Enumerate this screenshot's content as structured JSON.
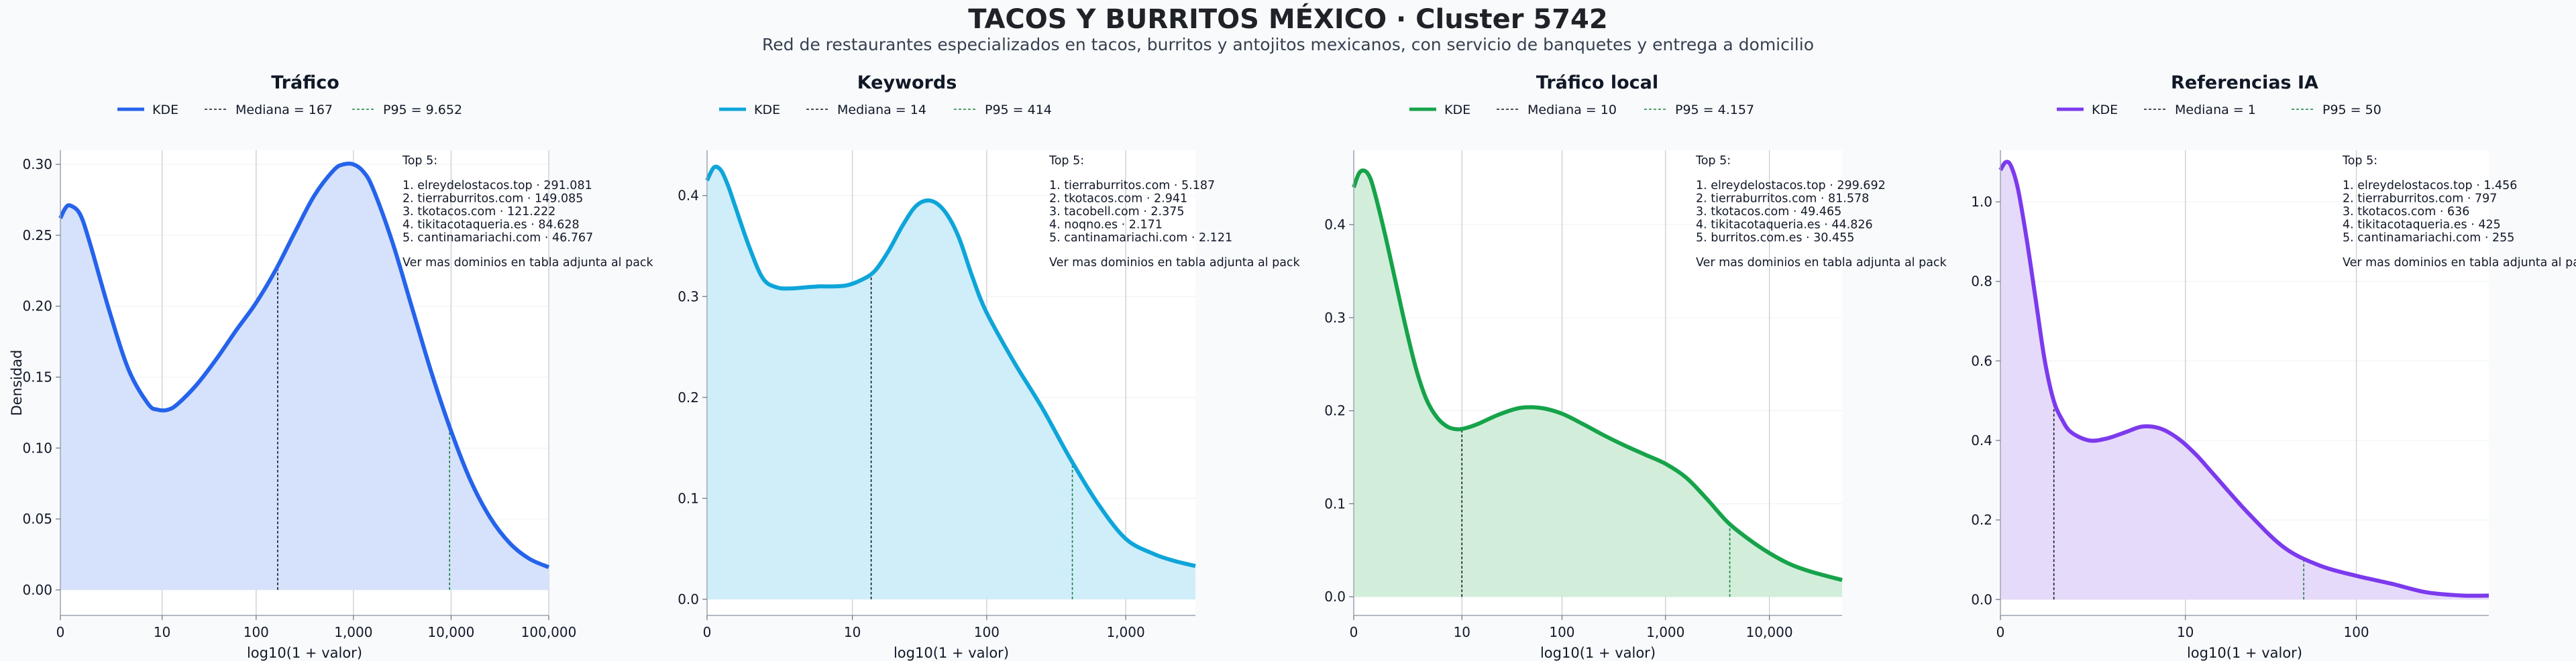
{
  "header": {
    "title": "TACOS Y BURRITOS MÉXICO · Cluster 5742",
    "subtitle": "Red de restaurantes especializados en tacos, burritos y antojitos mexicanos, con servicio de banquetes y entrega a domicilio"
  },
  "chart_data": [
    {
      "type": "area",
      "title": "Tráfico",
      "xlabel": "log10(1 + valor)",
      "ylabel": "Densidad",
      "color": "#2563eb",
      "fill": "#d6e2fb",
      "xlim": [
        0,
        5.0
      ],
      "ylim": [
        -0.018,
        0.31
      ],
      "yticks": [
        0,
        0.05,
        0.1,
        0.15,
        0.2,
        0.25,
        0.3
      ],
      "ytick_labels": [
        "0.00",
        "0.05",
        "0.10",
        "0.15",
        "0.20",
        "0.25",
        "0.30"
      ],
      "xticks": [
        0,
        1.0414,
        2.0043,
        3.0004,
        4.0,
        5.0
      ],
      "xtick_labels": [
        "0",
        "10",
        "100",
        "1,000",
        "10,000",
        "100,000"
      ],
      "grid": true,
      "legend": {
        "placement": "top-center",
        "kde_label": "KDE",
        "median_label": "Mediana = 167",
        "p95_label": "P95 = 9.652"
      },
      "median_x": 2.225,
      "p95_x": 3.985,
      "series": [
        {
          "name": "KDE",
          "x": [
            0,
            0.05,
            0.1,
            0.2,
            0.3,
            0.5,
            0.7,
            0.9,
            1.0,
            1.1,
            1.2,
            1.4,
            1.6,
            1.8,
            2.0,
            2.2,
            2.4,
            2.6,
            2.8,
            2.9,
            3.0,
            3.1,
            3.2,
            3.4,
            3.6,
            3.8,
            4.0,
            4.2,
            4.4,
            4.6,
            4.8,
            5.0
          ],
          "y": [
            0.262,
            0.269,
            0.271,
            0.265,
            0.245,
            0.197,
            0.155,
            0.131,
            0.127,
            0.127,
            0.131,
            0.145,
            0.163,
            0.183,
            0.202,
            0.225,
            0.252,
            0.278,
            0.296,
            0.3,
            0.3,
            0.295,
            0.283,
            0.245,
            0.199,
            0.153,
            0.112,
            0.077,
            0.051,
            0.033,
            0.022,
            0.016
          ]
        }
      ],
      "annotation": {
        "heading": "Top 5:",
        "lines": [
          "1. elreydelostacos.top · 291.081",
          "2. tierraburritos.com · 149.085",
          "3. tkotacos.com · 121.222",
          "4. tikitacotaqueria.es · 84.628",
          "5. cantinamariachi.com · 46.767"
        ],
        "footer": "Ver mas dominios en tabla adjunta al pack"
      }
    },
    {
      "type": "area",
      "title": "Keywords",
      "xlabel": "log10(1 + valor)",
      "ylabel": "",
      "color": "#0ea5d9",
      "fill": "#cfeefa",
      "xlim": [
        0,
        3.5
      ],
      "ylim": [
        -0.016,
        0.445
      ],
      "yticks": [
        0,
        0.1,
        0.2,
        0.3,
        0.4
      ],
      "ytick_labels": [
        "0.0",
        "0.1",
        "0.2",
        "0.3",
        "0.4"
      ],
      "xticks": [
        0,
        1.0414,
        2.0043,
        3.0004
      ],
      "xtick_labels": [
        "0",
        "10",
        "100",
        "1,000"
      ],
      "grid": true,
      "legend": {
        "placement": "top-center",
        "kde_label": "KDE",
        "median_label": "Mediana = 14",
        "p95_label": "P95 = 414"
      },
      "median_x": 1.176,
      "p95_x": 2.618,
      "series": [
        {
          "name": "KDE",
          "x": [
            0,
            0.05,
            0.1,
            0.15,
            0.2,
            0.3,
            0.4,
            0.5,
            0.6,
            0.7,
            0.8,
            0.9,
            1.0,
            1.1,
            1.2,
            1.3,
            1.4,
            1.5,
            1.6,
            1.7,
            1.8,
            1.9,
            2.0,
            2.2,
            2.4,
            2.6,
            2.8,
            3.0,
            3.2,
            3.35,
            3.5
          ],
          "y": [
            0.415,
            0.428,
            0.425,
            0.41,
            0.39,
            0.35,
            0.318,
            0.309,
            0.308,
            0.309,
            0.31,
            0.31,
            0.311,
            0.316,
            0.325,
            0.345,
            0.37,
            0.39,
            0.395,
            0.385,
            0.36,
            0.32,
            0.285,
            0.235,
            0.19,
            0.14,
            0.095,
            0.06,
            0.045,
            0.038,
            0.033
          ]
        }
      ],
      "annotation": {
        "heading": "Top 5:",
        "lines": [
          "1. tierraburritos.com · 5.187",
          "2. tkotacos.com · 2.941",
          "3. tacobell.com · 2.375",
          "4. noqno.es · 2.171",
          "5. cantinamariachi.com · 2.121"
        ],
        "footer": "Ver mas dominios en tabla adjunta al pack"
      }
    },
    {
      "type": "area",
      "title": "Tráfico local",
      "xlabel": "log10(1 + valor)",
      "ylabel": "",
      "color": "#16a34a",
      "fill": "#d2eedb",
      "xlim": [
        0,
        4.7
      ],
      "ylim": [
        -0.02,
        0.48
      ],
      "yticks": [
        0,
        0.1,
        0.2,
        0.3,
        0.4
      ],
      "ytick_labels": [
        "0.0",
        "0.1",
        "0.2",
        "0.3",
        "0.4"
      ],
      "xticks": [
        0,
        1.0414,
        2.0043,
        3.0004,
        4.0
      ],
      "xtick_labels": [
        "0",
        "10",
        "100",
        "1,000",
        "10,000"
      ],
      "grid": true,
      "legend": {
        "placement": "top-center",
        "kde_label": "KDE",
        "median_label": "Mediana = 10",
        "p95_label": "P95 = 4.157"
      },
      "median_x": 1.041,
      "p95_x": 3.619,
      "series": [
        {
          "name": "KDE",
          "x": [
            0,
            0.05,
            0.1,
            0.15,
            0.2,
            0.3,
            0.4,
            0.5,
            0.6,
            0.7,
            0.8,
            0.9,
            1.0,
            1.1,
            1.2,
            1.4,
            1.6,
            1.8,
            2.0,
            2.2,
            2.4,
            2.6,
            2.8,
            3.0,
            3.2,
            3.4,
            3.6,
            3.8,
            4.0,
            4.2,
            4.4,
            4.7
          ],
          "y": [
            0.44,
            0.455,
            0.458,
            0.452,
            0.435,
            0.39,
            0.34,
            0.29,
            0.245,
            0.212,
            0.193,
            0.183,
            0.18,
            0.182,
            0.186,
            0.196,
            0.203,
            0.203,
            0.197,
            0.186,
            0.174,
            0.163,
            0.153,
            0.143,
            0.128,
            0.105,
            0.08,
            0.062,
            0.047,
            0.035,
            0.027,
            0.018
          ]
        }
      ],
      "annotation": {
        "heading": "Top 5:",
        "lines": [
          "1. elreydelostacos.top · 299.692",
          "2. tierraburritos.com · 81.578",
          "3. tkotacos.com · 49.465",
          "4. tikitacotaqueria.es · 44.826",
          "5. burritos.com.es · 30.455"
        ],
        "footer": "Ver mas dominios en tabla adjunta al pack"
      }
    },
    {
      "type": "area",
      "title": "Referencias IA",
      "xlabel": "log10(1 + valor)",
      "ylabel": "",
      "color": "#7c3aed",
      "fill": "#e6dafa",
      "xlim": [
        0,
        2.75
      ],
      "ylim": [
        -0.04,
        1.13
      ],
      "yticks": [
        0,
        0.2,
        0.4,
        0.6,
        0.8,
        1.0
      ],
      "ytick_labels": [
        "0.0",
        "0.2",
        "0.4",
        "0.6",
        "0.8",
        "1.0"
      ],
      "xticks": [
        0,
        1.0414,
        2.0043
      ],
      "xtick_labels": [
        "0",
        "10",
        "100"
      ],
      "grid": true,
      "legend": {
        "placement": "top-center",
        "kde_label": "KDE",
        "median_label": "Mediana = 1",
        "p95_label": "P95 = 50"
      },
      "median_x": 0.301,
      "p95_x": 1.708,
      "series": [
        {
          "name": "KDE",
          "x": [
            0,
            0.03,
            0.06,
            0.1,
            0.15,
            0.2,
            0.25,
            0.3,
            0.35,
            0.4,
            0.5,
            0.6,
            0.7,
            0.8,
            0.9,
            1.0,
            1.1,
            1.2,
            1.4,
            1.6,
            1.8,
            2.0,
            2.2,
            2.4,
            2.6,
            2.75
          ],
          "y": [
            1.08,
            1.1,
            1.09,
            1.03,
            0.9,
            0.75,
            0.6,
            0.5,
            0.45,
            0.42,
            0.4,
            0.405,
            0.42,
            0.435,
            0.43,
            0.405,
            0.365,
            0.315,
            0.215,
            0.13,
            0.085,
            0.06,
            0.04,
            0.018,
            0.01,
            0.01
          ]
        }
      ],
      "annotation": {
        "heading": "Top 5:",
        "lines": [
          "1. elreydelostacos.top · 1.456",
          "2. tierraburritos.com · 797",
          "3. tkotacos.com · 636",
          "4. tikitacotaqueria.es · 425",
          "5. cantinamariachi.com · 255"
        ],
        "footer": "Ver mas dominios en tabla adjunta al pack"
      }
    }
  ]
}
